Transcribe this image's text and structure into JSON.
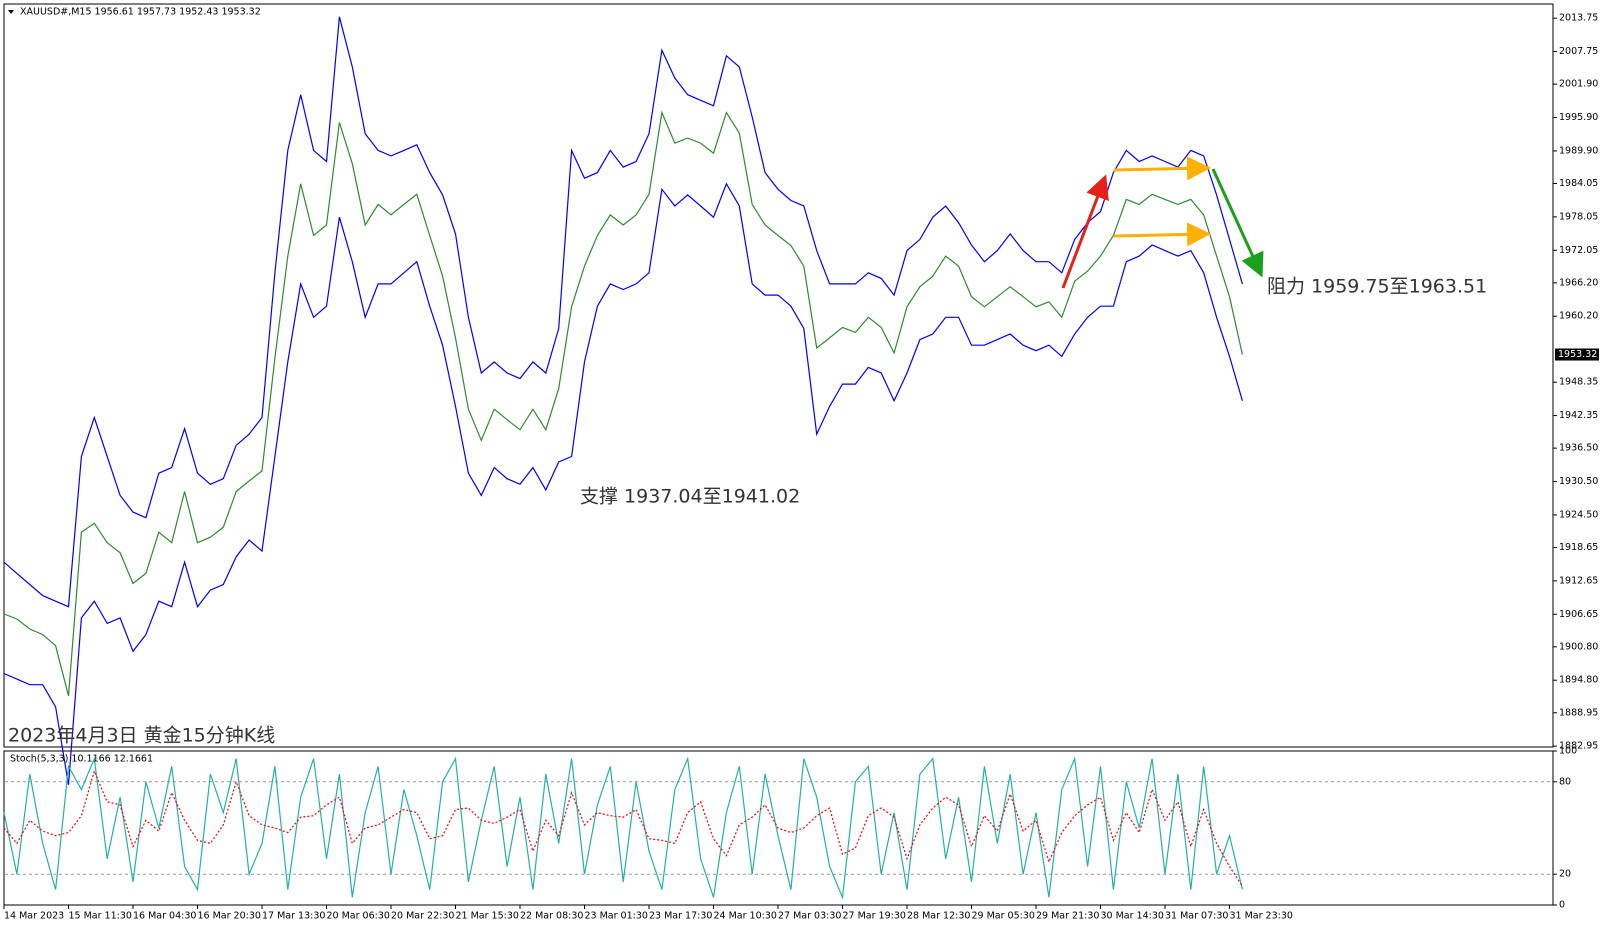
{
  "chart_data": [
    {
      "type": "line",
      "title": "XAUUSD#,M15  1956.61 1957.73 1952.43 1953.32",
      "annotations": [
        "支撑 1937.04至1941.02",
        "阻力 1959.75至1963.51",
        "2023年4月3日 黄金15分钟K线"
      ],
      "current_price": 1953.32,
      "ylim": [
        1882.8,
        2016.3
      ],
      "yticks": [
        2013.75,
        2007.75,
        {
          "value": 2001.9,
          "label": "2001.90"
        },
        {
          "value": 1995.9,
          "label": "1995.90"
        },
        {
          "value": 1989.9,
          "label": "1989.90"
        },
        1984.05,
        1978.05,
        1972.05,
        {
          "value": 1966.2,
          "label": "1966.20"
        },
        {
          "value": 1960.2,
          "label": "1960.20"
        },
        1948.35,
        1942.35,
        {
          "value": 1936.5,
          "label": "1936.50"
        },
        {
          "value": 1930.5,
          "label": "1930.50"
        },
        {
          "value": 1924.5,
          "label": "1924.50"
        },
        1918.65,
        1912.65,
        1906.65,
        {
          "value": 1900.8,
          "label": "1900.80"
        },
        {
          "value": 1894.8,
          "label": "1894.80"
        },
        1888.95,
        1882.95
      ],
      "categories": [
        "14 Mar 2023",
        null,
        null,
        null,
        null,
        "15 Mar 11:30",
        null,
        null,
        null,
        null,
        "16 Mar 04:30",
        null,
        null,
        null,
        null,
        "16 Mar 20:30",
        null,
        null,
        null,
        null,
        "17 Mar 13:30",
        null,
        null,
        null,
        null,
        "20 Mar 06:30",
        null,
        null,
        null,
        null,
        "20 Mar 22:30",
        null,
        null,
        null,
        null,
        "21 Mar 15:30",
        null,
        null,
        null,
        null,
        "22 Mar 08:30",
        null,
        null,
        null,
        null,
        "23 Mar 01:30",
        null,
        null,
        null,
        null,
        "23 Mar 17:30",
        null,
        null,
        null,
        null,
        "24 Mar 10:30",
        null,
        null,
        null,
        null,
        "27 Mar 03:30",
        null,
        null,
        null,
        null,
        "27 Mar 19:30",
        null,
        null,
        null,
        null,
        "28 Mar 12:30",
        null,
        null,
        null,
        null,
        "29 Mar 05:30",
        null,
        null,
        null,
        null,
        "29 Mar 21:30",
        null,
        null,
        null,
        null,
        "30 Mar 14:30",
        null,
        null,
        null,
        null,
        "31 Mar 07:30",
        null,
        null,
        null,
        null,
        "31 Mar 23:30",
        null
      ],
      "series": [
        {
          "color": "#2e8b2e",
          "values": [
            1906.7,
            1905.8,
            1904,
            1903,
            1901,
            1892,
            1921.4,
            1923,
            1919.5,
            1917.7,
            1912.2,
            1914,
            1921.4,
            1919.5,
            1928.7,
            1919.5,
            1920.5,
            1922.3,
            1928.7,
            1930.6,
            1932.4,
            1952.7,
            1971,
            1984,
            1974.7,
            1976.6,
            1995,
            1987.6,
            1976.6,
            1980.3,
            1978.4,
            1980.3,
            1982.1,
            1974.7,
            1967.4,
            1956.3,
            1943.5,
            1937.9,
            1943.5,
            1941.6,
            1939.8,
            1943.5,
            1939.8,
            1947.2,
            1961.9,
            1969.2,
            1974.7,
            1978.4,
            1976.6,
            1978.4,
            1982.1,
            1996.8,
            1991.3,
            1992.2,
            1991.3,
            1989.5,
            1996.8,
            1993.1,
            1980.3,
            1976.6,
            1974.7,
            1972.9,
            1969.2,
            1954.5,
            1956.3,
            1958.2,
            1957.3,
            1960,
            1958.2,
            1953.6,
            1961.9,
            1965.5,
            1967.4,
            1971,
            1969.2,
            1963.7,
            1961.9,
            1963.7,
            1965.5,
            1963.7,
            1961.9,
            1962.8,
            1960,
            1966.5,
            1968.3,
            1971,
            1974.7,
            1981.2,
            1980.3,
            1982.1,
            1981.2,
            1980.3,
            1981.2,
            1978.4,
            1971,
            1963.7,
            1953.3
          ]
        },
        {
          "color": "#0000ff",
          "values": [
            1916,
            1914,
            1912,
            1910,
            1909,
            1908,
            1935,
            1942,
            1935,
            1928,
            1925,
            1924,
            1932,
            1933,
            1940,
            1932,
            1930,
            1931,
            1937,
            1939,
            1942,
            1968,
            1990,
            2000,
            1990,
            1988,
            2014,
            2005,
            1993,
            1990,
            1989,
            1990,
            1991,
            1986,
            1982,
            1975,
            1960,
            1950,
            1952,
            1950,
            1949,
            1952,
            1950,
            1958,
            1990,
            1985,
            1986,
            1990,
            1987,
            1988,
            1993,
            2008,
            2003,
            2000,
            1999,
            1998,
            2007,
            2005,
            1996,
            1986,
            1983,
            1981,
            1980,
            1972,
            1966,
            1966,
            1966,
            1968,
            1967,
            1964,
            1972,
            1974,
            1978,
            1980,
            1977,
            1973,
            1970,
            1972,
            1975,
            1972,
            1970,
            1970,
            1968,
            1974,
            1977,
            1979,
            1986,
            1990,
            1988,
            1989,
            1988,
            1987,
            1990,
            1989,
            1982,
            1974,
            1966
          ]
        },
        {
          "color": "#0000ff",
          "values": [
            1896,
            1895,
            1894,
            1894,
            1890,
            1876,
            1906,
            1909,
            1905,
            1906,
            1900,
            1903,
            1909,
            1908,
            1916,
            1908,
            1911,
            1912,
            1917,
            1920,
            1918,
            1935,
            1952,
            1966,
            1960,
            1962,
            1978,
            1970,
            1960,
            1966,
            1966,
            1968,
            1970,
            1962,
            1955,
            1944,
            1932,
            1928,
            1933,
            1931,
            1930,
            1933,
            1929,
            1934,
            1935,
            1952,
            1962,
            1966,
            1965,
            1966,
            1968,
            1983,
            1980,
            1982,
            1980,
            1978,
            1984,
            1980,
            1966,
            1964,
            1964,
            1962,
            1958,
            1939,
            1944,
            1948,
            1948,
            1951,
            1950,
            1945,
            1950,
            1956,
            1957,
            1960,
            1960,
            1955,
            1955,
            1956,
            1957,
            1955,
            1954,
            1955,
            1953,
            1957,
            1960,
            1962,
            1962,
            1970,
            1971,
            1973,
            1972,
            1971,
            1972,
            1968,
            1960,
            1953,
            1945
          ]
        }
      ]
    },
    {
      "type": "line",
      "title": "Stoch(5,3,3) 10.1166 12.1661",
      "ylim": [
        0,
        100
      ],
      "yticks": [
        100,
        80,
        20,
        0
      ],
      "levels": [
        80,
        20
      ],
      "series": [
        {
          "color": "#20b2aa",
          "values": [
            60,
            20,
            85,
            40,
            10,
            90,
            75,
            95,
            30,
            70,
            15,
            80,
            50,
            90,
            25,
            10,
            85,
            60,
            95,
            20,
            40,
            90,
            10,
            70,
            95,
            30,
            85,
            5,
            60,
            90,
            20,
            75,
            45,
            10,
            80,
            95,
            15,
            55,
            90,
            25,
            70,
            10,
            85,
            40,
            95,
            20,
            65,
            90,
            15,
            80,
            35,
            10,
            75,
            95,
            30,
            5,
            60,
            90,
            20,
            85,
            45,
            10,
            95,
            70,
            25,
            5,
            80,
            90,
            20,
            60,
            10,
            85,
            95,
            30,
            70,
            15,
            90,
            40,
            85,
            20,
            60,
            5,
            75,
            95,
            25,
            90,
            10,
            80,
            50,
            95,
            20,
            85,
            10,
            90,
            20,
            45,
            10.1
          ]
        },
        {
          "color": "#ff0000",
          "dashed": true,
          "values": [
            50,
            40,
            55,
            48,
            45,
            47,
            58,
            87,
            67,
            65,
            38,
            55,
            48,
            73,
            55,
            42,
            40,
            52,
            80,
            58,
            52,
            50,
            47,
            57,
            58,
            65,
            70,
            40,
            50,
            52,
            57,
            62,
            60,
            43,
            45,
            62,
            63,
            55,
            53,
            57,
            62,
            35,
            55,
            45,
            73,
            52,
            60,
            58,
            57,
            62,
            43,
            42,
            40,
            60,
            67,
            43,
            32,
            52,
            57,
            65,
            50,
            47,
            50,
            58,
            63,
            33,
            37,
            58,
            63,
            57,
            30,
            52,
            63,
            70,
            65,
            38,
            58,
            48,
            72,
            48,
            55,
            28,
            47,
            58,
            65,
            70,
            42,
            60,
            47,
            75,
            55,
            67,
            38,
            62,
            40,
            25,
            12.2
          ]
        }
      ]
    }
  ]
}
